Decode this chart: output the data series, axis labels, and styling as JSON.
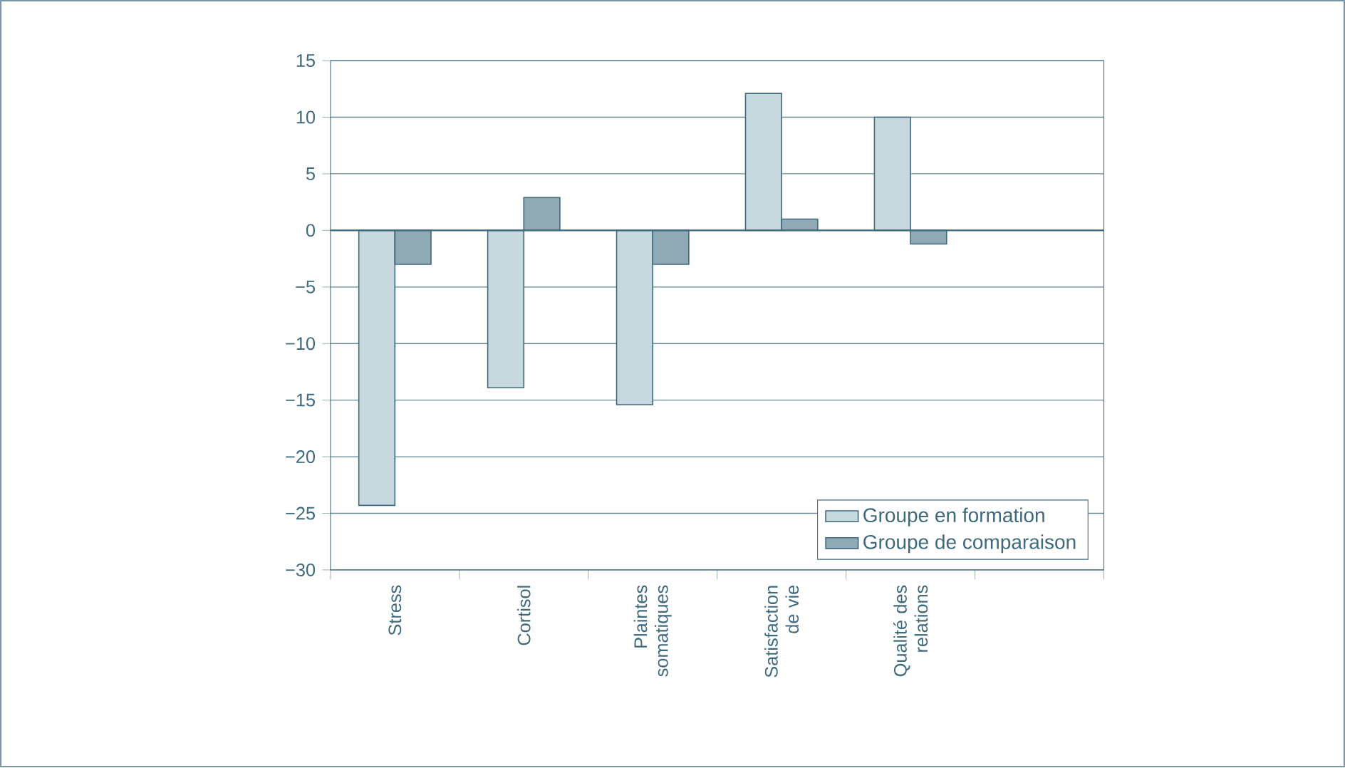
{
  "chart_data": {
    "type": "bar",
    "categories": [
      "Stress",
      "Cortisol",
      "Plaintes somatiques",
      "Satisfaction de vie",
      "Qualité des relations",
      null
    ],
    "series": [
      {
        "name": "Groupe en formation",
        "color": "#c8d8df",
        "values": [
          -24.3,
          -13.9,
          -15.4,
          12.1,
          10,
          null
        ]
      },
      {
        "name": "Groupe de comparaison",
        "color": "#8fa9b5",
        "values": [
          -3,
          2.9,
          -3,
          1,
          -1.2,
          null
        ]
      }
    ],
    "ylim": [
      -30,
      15
    ],
    "yticks": [
      {
        "value": -30,
        "label": "−30"
      },
      {
        "value": -25,
        "label": "−25"
      },
      {
        "value": -20,
        "label": "−20"
      },
      {
        "value": -15,
        "label": "−15"
      },
      {
        "value": -10,
        "label": "−10"
      },
      {
        "value": -5,
        "label": "−5"
      },
      0,
      5,
      10,
      15
    ],
    "ref_lines": [
      {
        "axis": "y",
        "value": 0
      }
    ],
    "grid": "y",
    "legend": "bottom right"
  }
}
